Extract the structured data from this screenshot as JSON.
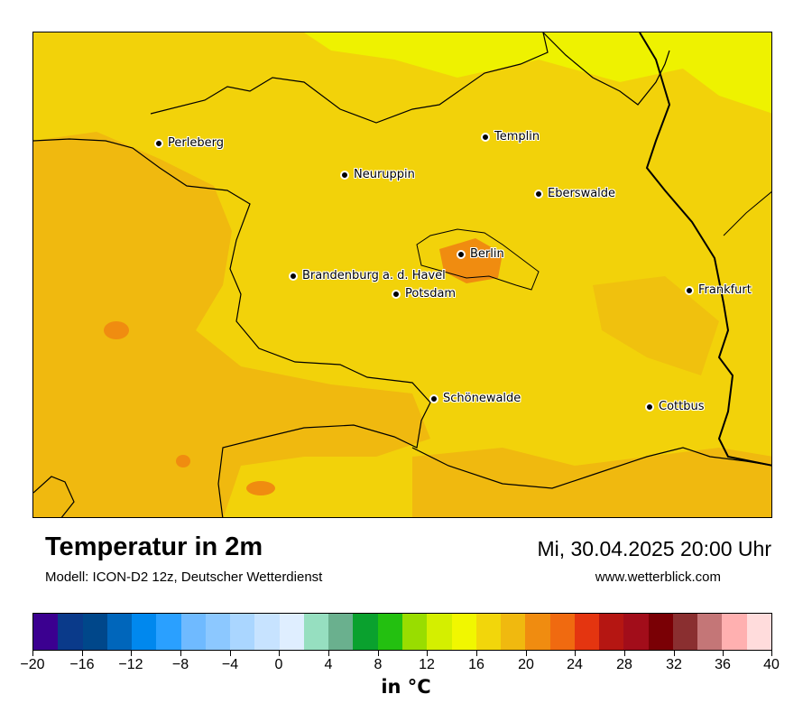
{
  "map": {
    "colors": {
      "base": "#f2d20a",
      "warm_region": "#f0b90f",
      "cool_region": "#eef200",
      "hot_spot": "#f08c10",
      "border_state": "#000000"
    },
    "cities": [
      {
        "name": "Perleberg"
      },
      {
        "name": "Templin"
      },
      {
        "name": "Neuruppin"
      },
      {
        "name": "Eberswalde"
      },
      {
        "name": "Berlin"
      },
      {
        "name": "Brandenburg a. d. Havel"
      },
      {
        "name": "Potsdam"
      },
      {
        "name": "Frankfurt"
      },
      {
        "name": "Schönewalde"
      },
      {
        "name": "Cottbus"
      }
    ]
  },
  "header": {
    "title": "Temperatur in 2m",
    "subtitle": "Modell: ICON-D2 12z, Deutscher Wetterdienst",
    "datetime": "Mi, 30.04.2025 20:00 Uhr",
    "website": "www.wetterblick.com"
  },
  "legend": {
    "unit_label": "in °C",
    "ticks": [
      "−20",
      "−16",
      "−12",
      "−8",
      "−4",
      "0",
      "4",
      "8",
      "12",
      "16",
      "20",
      "24",
      "28",
      "32",
      "36",
      "40"
    ],
    "colors": [
      "#3b0090",
      "#0a3a8a",
      "#00478a",
      "#0066bb",
      "#0088ee",
      "#2aa0ff",
      "#6fbaff",
      "#8cc8ff",
      "#aad6ff",
      "#c7e3ff",
      "#dfeeff",
      "#96dfc0",
      "#6ab08e",
      "#0aa12e",
      "#23c010",
      "#99dd00",
      "#d4ef00",
      "#f1f700",
      "#f2d60b",
      "#f0b90f",
      "#f08c10",
      "#f06a10",
      "#e43510",
      "#b51612",
      "#a20d1a",
      "#7a0005",
      "#8a2f30",
      "#c47677",
      "#ffb0b0",
      "#ffdcdc"
    ]
  }
}
